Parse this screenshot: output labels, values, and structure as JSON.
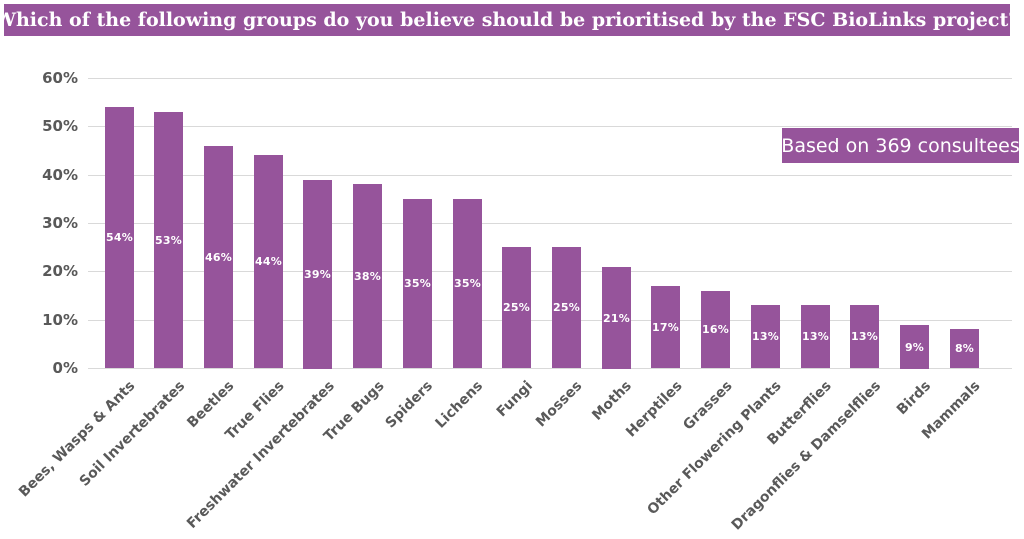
{
  "header": {
    "title": "Which of the following groups do you believe should be prioritised by the FSC BioLinks project?"
  },
  "badge": {
    "label": "Based on 369 consultees"
  },
  "colors": {
    "accent_purple": "#96549b",
    "gridline": "#d9d9d9",
    "axis_text": "#595959",
    "bar_value_text": "#ffffff",
    "title_text": "#ffffff",
    "background": "#ffffff"
  },
  "chart_data": {
    "type": "bar",
    "title": "Which of the following groups do you believe should be prioritised by the FSC BioLinks project?",
    "annotation": "Based on 369 consultees",
    "categories": [
      "Bees, Wasps & Ants",
      "Soil Invertebrates",
      "Beetles",
      "True Flies",
      "Freshwater Invertebrates",
      "True Bugs",
      "Spiders",
      "Lichens",
      "Fungi",
      "Mosses",
      "Moths",
      "Herptiles",
      "Grasses",
      "Other Flowering Plants",
      "Butterflies",
      "Dragonflies & Damselflies",
      "Birds",
      "Mammals"
    ],
    "values": [
      54,
      53,
      46,
      44,
      39,
      38,
      35,
      35,
      25,
      25,
      21,
      17,
      16,
      13,
      13,
      13,
      9,
      8
    ],
    "value_labels": [
      "54%",
      "53%",
      "46%",
      "44%",
      "39%",
      "38%",
      "35%",
      "35%",
      "25%",
      "25%",
      "21%",
      "17%",
      "16%",
      "13%",
      "13%",
      "13%",
      "9%",
      "8%"
    ],
    "xlabel": "",
    "ylabel": "",
    "ylim": [
      0,
      60
    ],
    "yticks": [
      0,
      10,
      20,
      30,
      40,
      50,
      60
    ],
    "ytick_labels": [
      "0%",
      "10%",
      "20%",
      "30%",
      "40%",
      "50%",
      "60%"
    ],
    "grid": true,
    "legend": false,
    "bar_color": "#96549b",
    "value_label_position": "inside-center",
    "category_label_rotation_deg": -45
  }
}
